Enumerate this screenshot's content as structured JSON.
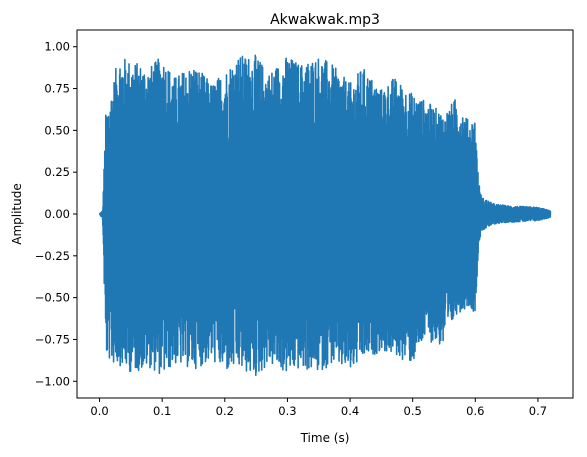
{
  "chart_data": {
    "type": "line",
    "title": "Akwakwak.mp3",
    "xlabel": "Time (s)",
    "ylabel": "Amplitude",
    "xlim": [
      -0.036,
      0.756
    ],
    "ylim": [
      -1.1,
      1.1
    ],
    "x_ticks": [
      0.0,
      0.1,
      0.2,
      0.3,
      0.4,
      0.5,
      0.6,
      0.7
    ],
    "x_tick_labels": [
      "0.0",
      "0.1",
      "0.2",
      "0.3",
      "0.4",
      "0.5",
      "0.6",
      "0.7"
    ],
    "y_ticks": [
      1.0,
      0.75,
      0.5,
      0.25,
      0.0,
      -0.25,
      -0.5,
      -0.75,
      -1.0
    ],
    "y_tick_labels": [
      "1.00",
      "0.75",
      "0.50",
      "0.25",
      "0.00",
      "−0.25",
      "−0.50",
      "−0.75",
      "−1.00"
    ],
    "grid": false,
    "series": [
      {
        "color": "#1f77b4",
        "envelope_time_s": [
          0.0,
          0.005,
          0.01,
          0.02,
          0.03,
          0.05,
          0.08,
          0.1,
          0.12,
          0.15,
          0.18,
          0.2,
          0.22,
          0.25,
          0.27,
          0.3,
          0.32,
          0.35,
          0.37,
          0.4,
          0.42,
          0.45,
          0.47,
          0.5,
          0.52,
          0.55,
          0.57,
          0.59,
          0.6,
          0.605,
          0.61,
          0.63,
          0.65,
          0.7,
          0.72
        ],
        "envelope_max": [
          0.0,
          0.02,
          0.6,
          0.75,
          0.95,
          0.92,
          0.88,
          0.95,
          0.82,
          0.9,
          0.78,
          0.86,
          0.95,
          0.95,
          0.85,
          0.95,
          0.9,
          0.95,
          0.9,
          0.78,
          0.88,
          0.75,
          0.82,
          0.72,
          0.68,
          0.6,
          0.7,
          0.55,
          0.58,
          0.2,
          0.1,
          0.06,
          0.05,
          0.04,
          0.02
        ],
        "envelope_min": [
          0.0,
          -0.03,
          -0.85,
          -0.9,
          -0.9,
          -0.95,
          -0.92,
          -0.97,
          -0.9,
          -0.93,
          -0.88,
          -0.95,
          -0.93,
          -0.98,
          -0.9,
          -0.96,
          -0.93,
          -0.95,
          -0.9,
          -0.95,
          -0.88,
          -0.82,
          -0.85,
          -0.9,
          -0.75,
          -0.8,
          -0.6,
          -0.55,
          -0.6,
          -0.2,
          -0.1,
          -0.06,
          -0.05,
          -0.04,
          -0.02
        ]
      }
    ]
  }
}
